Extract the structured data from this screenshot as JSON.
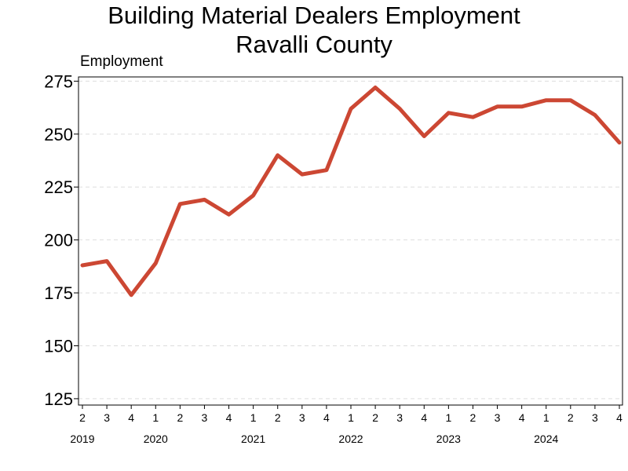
{
  "chart_data": {
    "type": "line",
    "title": "Building Material Dealers Employment",
    "subtitle": "Ravalli County",
    "ylabel": "Employment",
    "ylim": [
      122,
      277
    ],
    "yticks": [
      125,
      150,
      175,
      200,
      225,
      250,
      275
    ],
    "grid": "horizontal dashed",
    "quarters": [
      "2",
      "3",
      "4",
      "1",
      "2",
      "3",
      "4",
      "1",
      "2",
      "3",
      "4",
      "1",
      "2",
      "3",
      "4",
      "1",
      "2",
      "3",
      "4",
      "1",
      "2",
      "3",
      "4"
    ],
    "years": [
      {
        "label": "2019",
        "index": 0
      },
      {
        "label": "2020",
        "index": 3
      },
      {
        "label": "2021",
        "index": 7
      },
      {
        "label": "2022",
        "index": 11
      },
      {
        "label": "2023",
        "index": 15
      },
      {
        "label": "2024",
        "index": 19
      }
    ],
    "series": [
      {
        "color": "#cc4733",
        "values": [
          188,
          190,
          174,
          189,
          217,
          219,
          212,
          221,
          240,
          231,
          233,
          262,
          272,
          262,
          249,
          260,
          258,
          263,
          263,
          266,
          266,
          259,
          246
        ]
      }
    ]
  }
}
